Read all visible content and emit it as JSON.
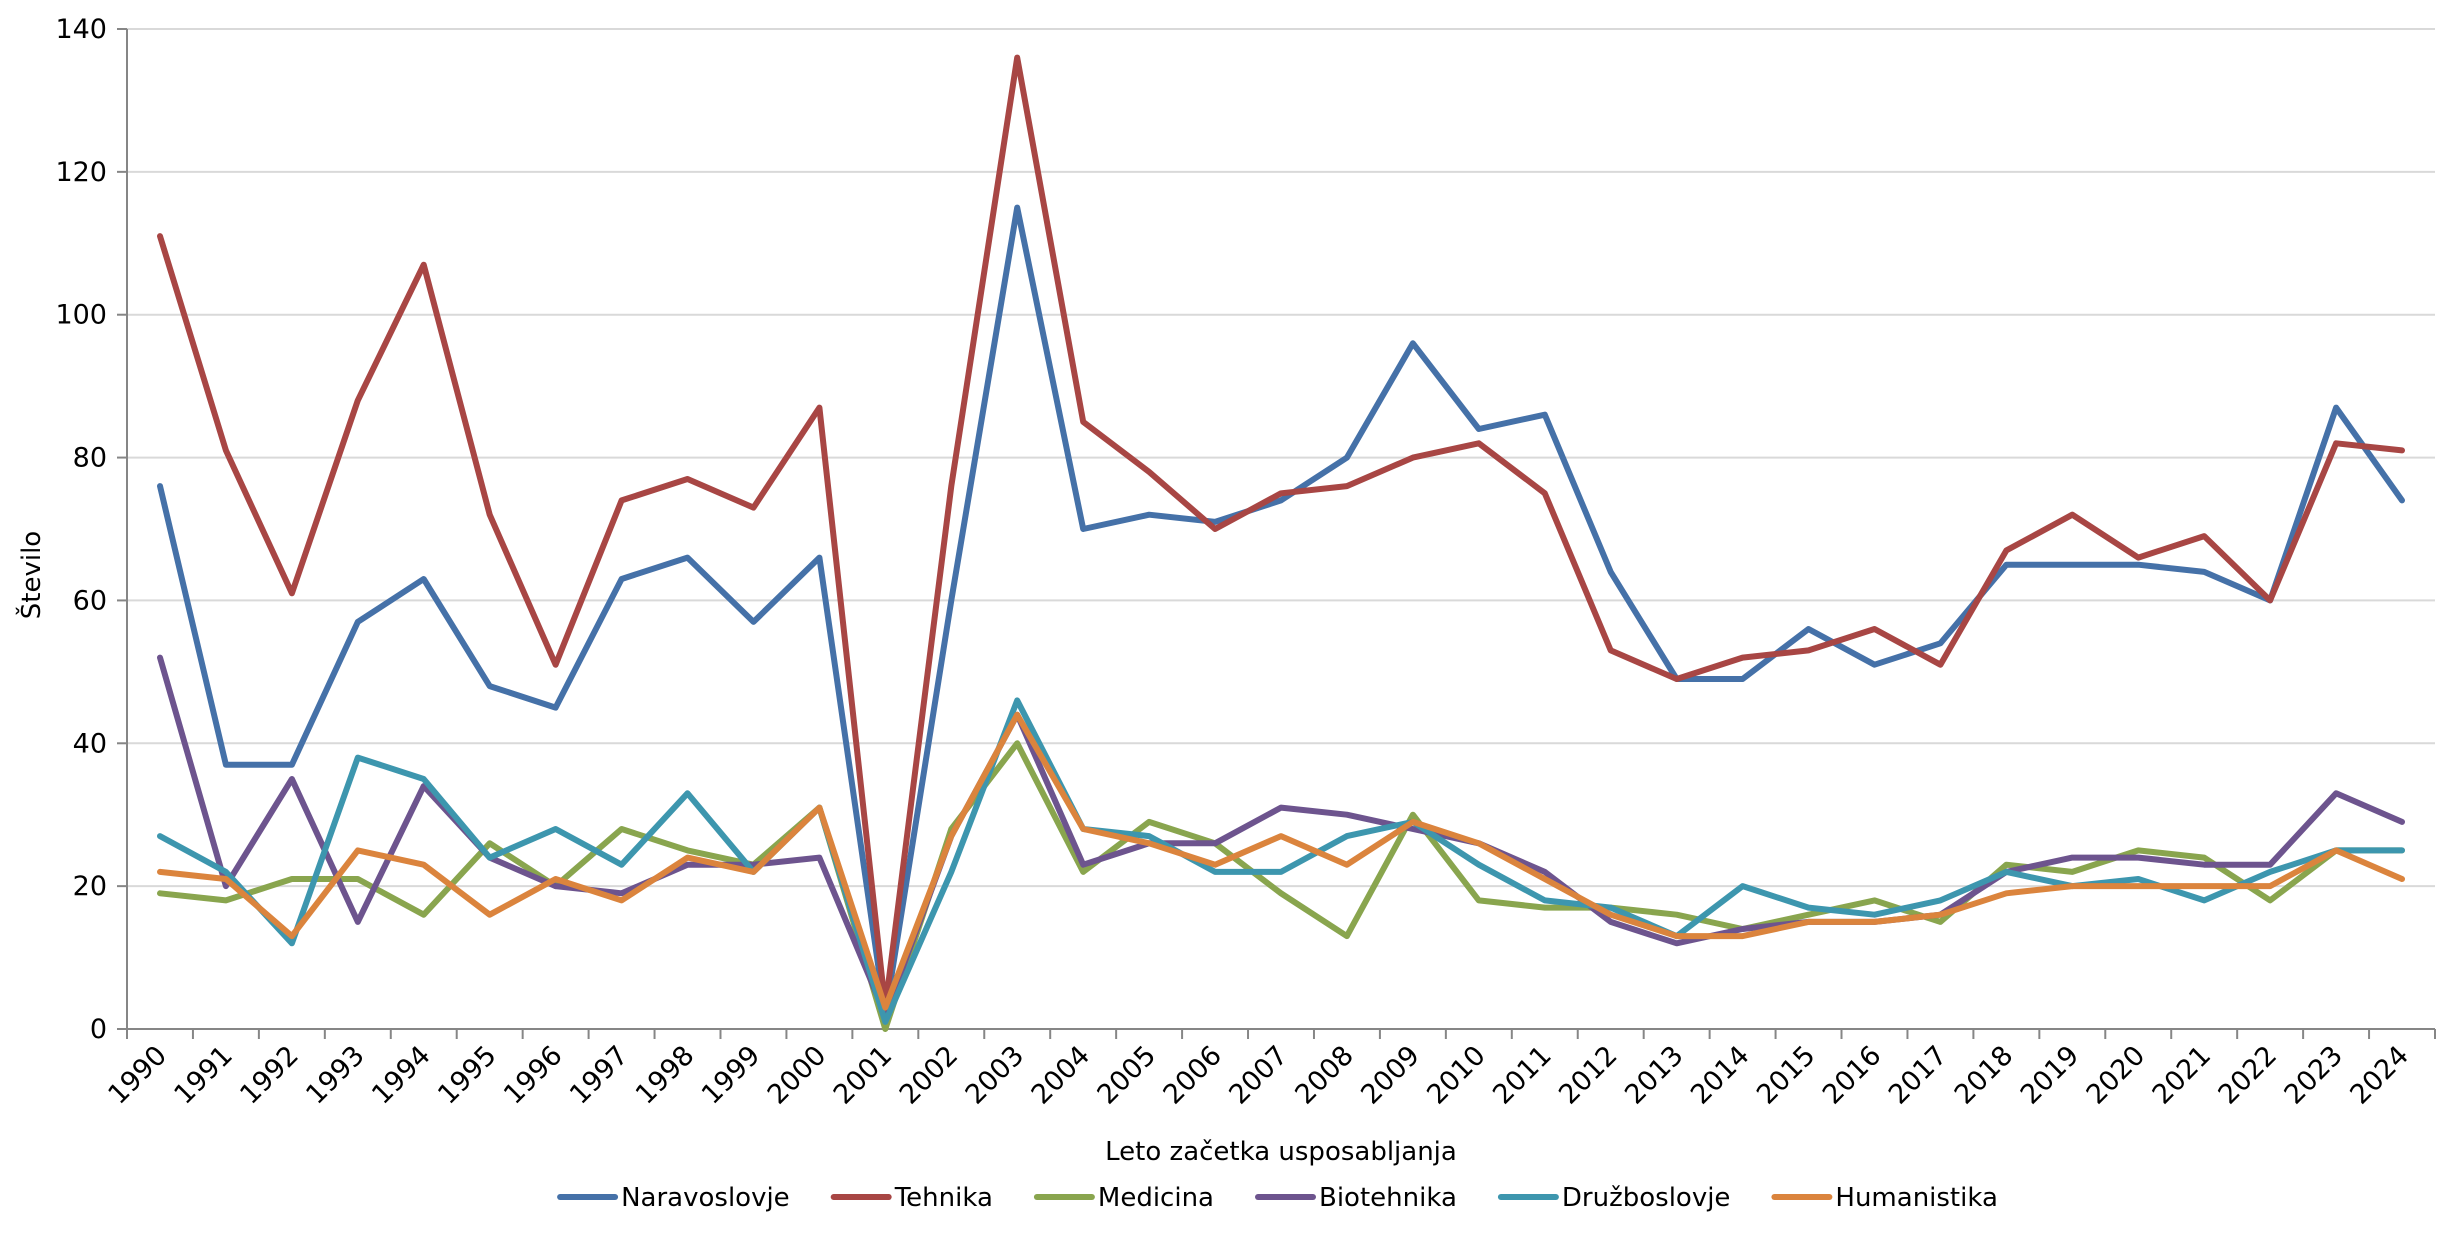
{
  "chart_data": {
    "type": "line",
    "title": "",
    "xlabel": "Leto začetka usposabljanja",
    "ylabel": "Število",
    "ylim": [
      0,
      140
    ],
    "yticks": [
      0,
      20,
      40,
      60,
      80,
      100,
      120,
      140
    ],
    "grid": true,
    "legend_position": "bottom",
    "categories": [
      "1990",
      "1991",
      "1992",
      "1993",
      "1994",
      "1995",
      "1996",
      "1997",
      "1998",
      "1999",
      "2000",
      "2001",
      "2002",
      "2003",
      "2004",
      "2005",
      "2006",
      "2007",
      "2008",
      "2009",
      "2010",
      "2011",
      "2012",
      "2013",
      "2014",
      "2015",
      "2016",
      "2017",
      "2018",
      "2019",
      "2020",
      "2021",
      "2022",
      "2023",
      "2024"
    ],
    "series": [
      {
        "name": "Naravoslovje",
        "color": "#4571A8",
        "values": [
          76,
          37,
          37,
          57,
          63,
          48,
          45,
          63,
          66,
          57,
          66,
          2,
          60,
          115,
          70,
          72,
          71,
          74,
          80,
          96,
          84,
          86,
          64,
          49,
          49,
          56,
          51,
          54,
          65,
          65,
          65,
          64,
          60,
          87,
          74
        ]
      },
      {
        "name": "Tehnika",
        "color": "#A84644",
        "values": [
          111,
          81,
          61,
          88,
          107,
          72,
          51,
          74,
          77,
          73,
          87,
          3,
          76,
          136,
          85,
          78,
          70,
          75,
          76,
          80,
          82,
          75,
          53,
          49,
          52,
          53,
          56,
          51,
          67,
          72,
          66,
          69,
          60,
          82,
          81
        ]
      },
      {
        "name": "Medicina",
        "color": "#89A54E",
        "values": [
          19,
          18,
          21,
          21,
          16,
          26,
          20,
          28,
          25,
          23,
          31,
          0,
          28,
          40,
          22,
          29,
          26,
          19,
          13,
          30,
          18,
          17,
          17,
          16,
          14,
          16,
          18,
          15,
          23,
          22,
          25,
          24,
          18,
          25,
          25
        ]
      },
      {
        "name": "Biotehnika",
        "color": "#6D548E",
        "values": [
          52,
          20,
          35,
          15,
          34,
          24,
          20,
          19,
          23,
          23,
          24,
          2,
          27,
          44,
          23,
          26,
          26,
          31,
          30,
          28,
          26,
          22,
          15,
          12,
          14,
          15,
          15,
          16,
          22,
          24,
          24,
          23,
          23,
          33,
          29
        ]
      },
      {
        "name": "Družboslovje",
        "color": "#3D96AE",
        "values": [
          27,
          22,
          12,
          38,
          35,
          24,
          28,
          23,
          33,
          22,
          31,
          1,
          22,
          46,
          28,
          27,
          22,
          22,
          27,
          29,
          23,
          18,
          17,
          13,
          20,
          17,
          16,
          18,
          22,
          20,
          21,
          18,
          22,
          25,
          25
        ]
      },
      {
        "name": "Humanistika",
        "color": "#DB843D",
        "values": [
          22,
          21,
          13,
          25,
          23,
          16,
          21,
          18,
          24,
          22,
          31,
          3,
          27,
          44,
          28,
          26,
          23,
          27,
          23,
          29,
          26,
          21,
          16,
          13,
          13,
          15,
          15,
          16,
          19,
          20,
          20,
          20,
          20,
          25,
          21
        ]
      }
    ]
  }
}
